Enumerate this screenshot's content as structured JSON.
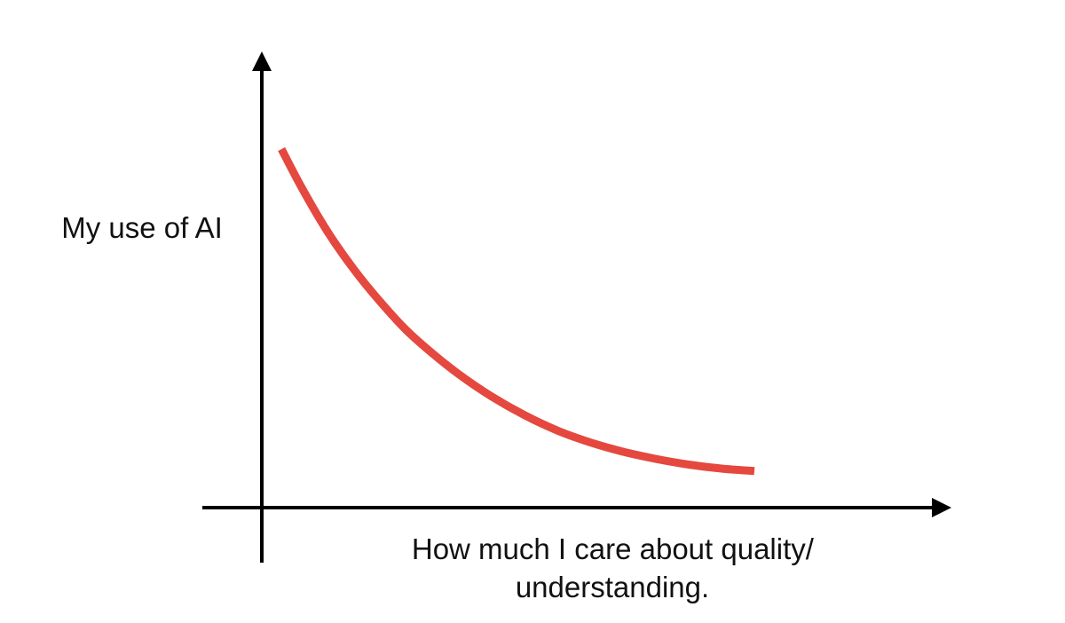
{
  "chart_data": {
    "type": "line",
    "title": "",
    "xlabel_lines": [
      "How much I care about quality/",
      "understanding."
    ],
    "ylabel": "My use of AI",
    "grid": false,
    "legend": "none",
    "xlim": [
      0,
      10
    ],
    "ylim": [
      0,
      10
    ],
    "series": [
      {
        "color": "#E5483F",
        "x": [
          0.3,
          0.6,
          1.0,
          1.4,
          1.8,
          2.2,
          2.6,
          3.0,
          3.5,
          4.0,
          4.5,
          5.0,
          5.5,
          6.0,
          6.5,
          7.0,
          7.5
        ],
        "y": [
          10.0,
          8.95,
          7.7,
          6.65,
          5.75,
          4.95,
          4.3,
          3.72,
          3.1,
          2.58,
          2.15,
          1.82,
          1.56,
          1.36,
          1.2,
          1.09,
          1.02
        ]
      }
    ]
  },
  "colors": {
    "axis": "#000000",
    "curve": "#E5483F",
    "text": "#111111"
  }
}
